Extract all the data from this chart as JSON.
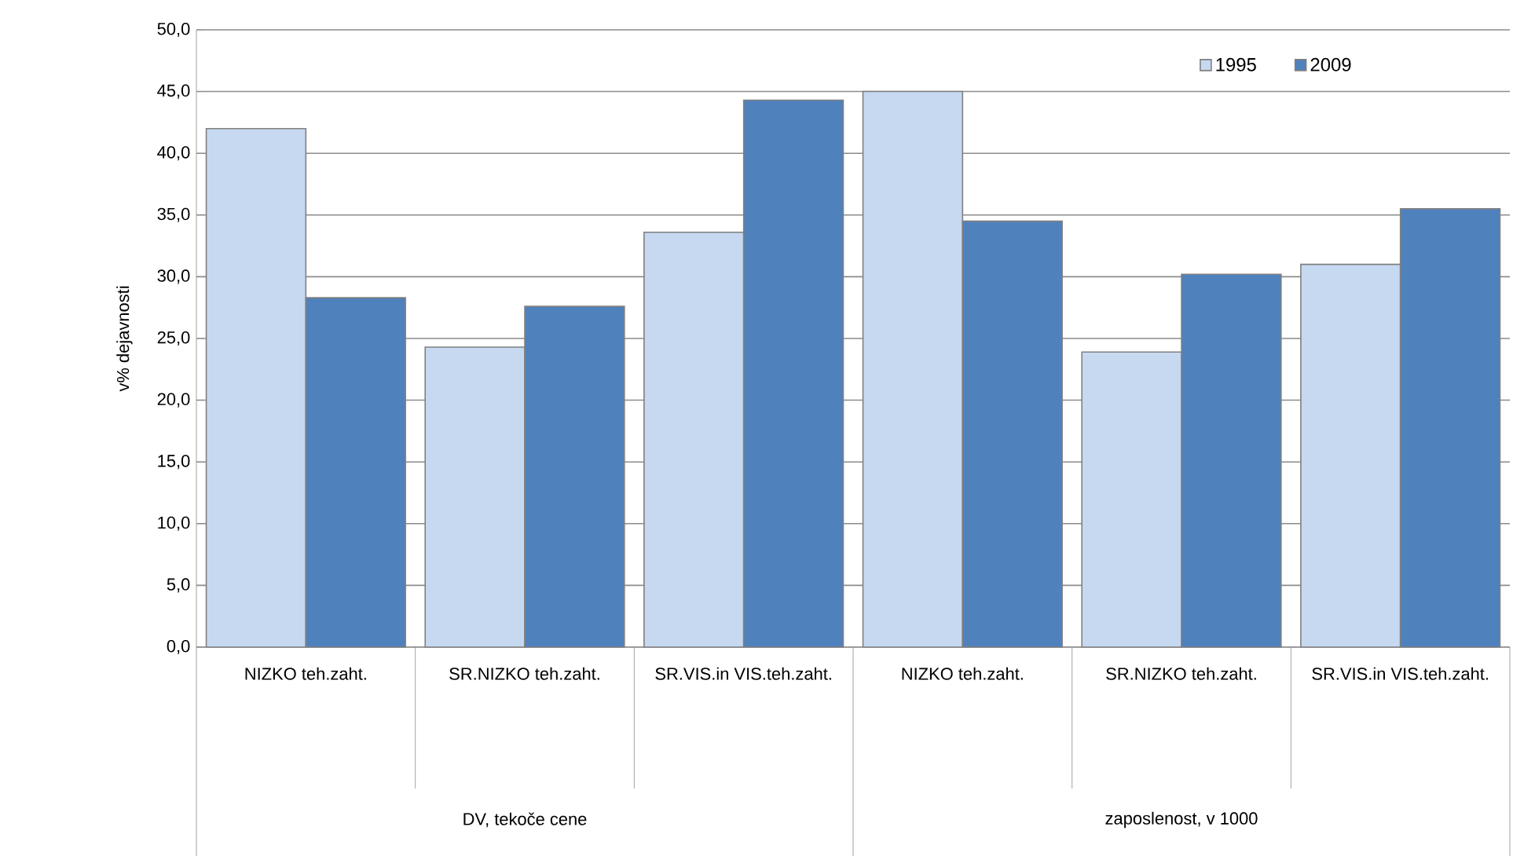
{
  "chart_data": {
    "type": "bar",
    "ylabel": "v% dejavnosti",
    "categories": [
      "NIZKO teh.zaht.",
      "SR.NIZKO teh.zaht.",
      "SR.VIS.in VIS.teh.zaht.",
      "NIZKO teh.zaht.",
      "SR.NIZKO teh.zaht.",
      "SR.VIS.in VIS.teh.zaht."
    ],
    "series": [
      {
        "name": "1995",
        "color": "#c6d9f1",
        "values": [
          42.0,
          24.3,
          33.6,
          45.0,
          23.9,
          31.0
        ]
      },
      {
        "name": "2009",
        "color": "#4f81bd",
        "values": [
          28.3,
          27.6,
          44.3,
          34.5,
          30.2,
          35.5
        ]
      }
    ],
    "annotations": [
      "DV, tekoče cene",
      "zaposlenost, v 1000"
    ],
    "ylim": [
      0,
      50
    ],
    "yticks": [
      {
        "value": 0,
        "label": "0,0"
      },
      {
        "value": 5,
        "label": "5,0"
      },
      {
        "value": 10,
        "label": "10,0"
      },
      {
        "value": 15,
        "label": "15,0"
      },
      {
        "value": 20,
        "label": "20,0"
      },
      {
        "value": 25,
        "label": "25,0"
      },
      {
        "value": 30,
        "label": "30,0"
      },
      {
        "value": 35,
        "label": "35,0"
      },
      {
        "value": 40,
        "label": "40,0"
      },
      {
        "value": 45,
        "label": "45,0"
      },
      {
        "value": 50,
        "label": "50,0"
      }
    ],
    "grid": "y",
    "legend": "top right"
  }
}
